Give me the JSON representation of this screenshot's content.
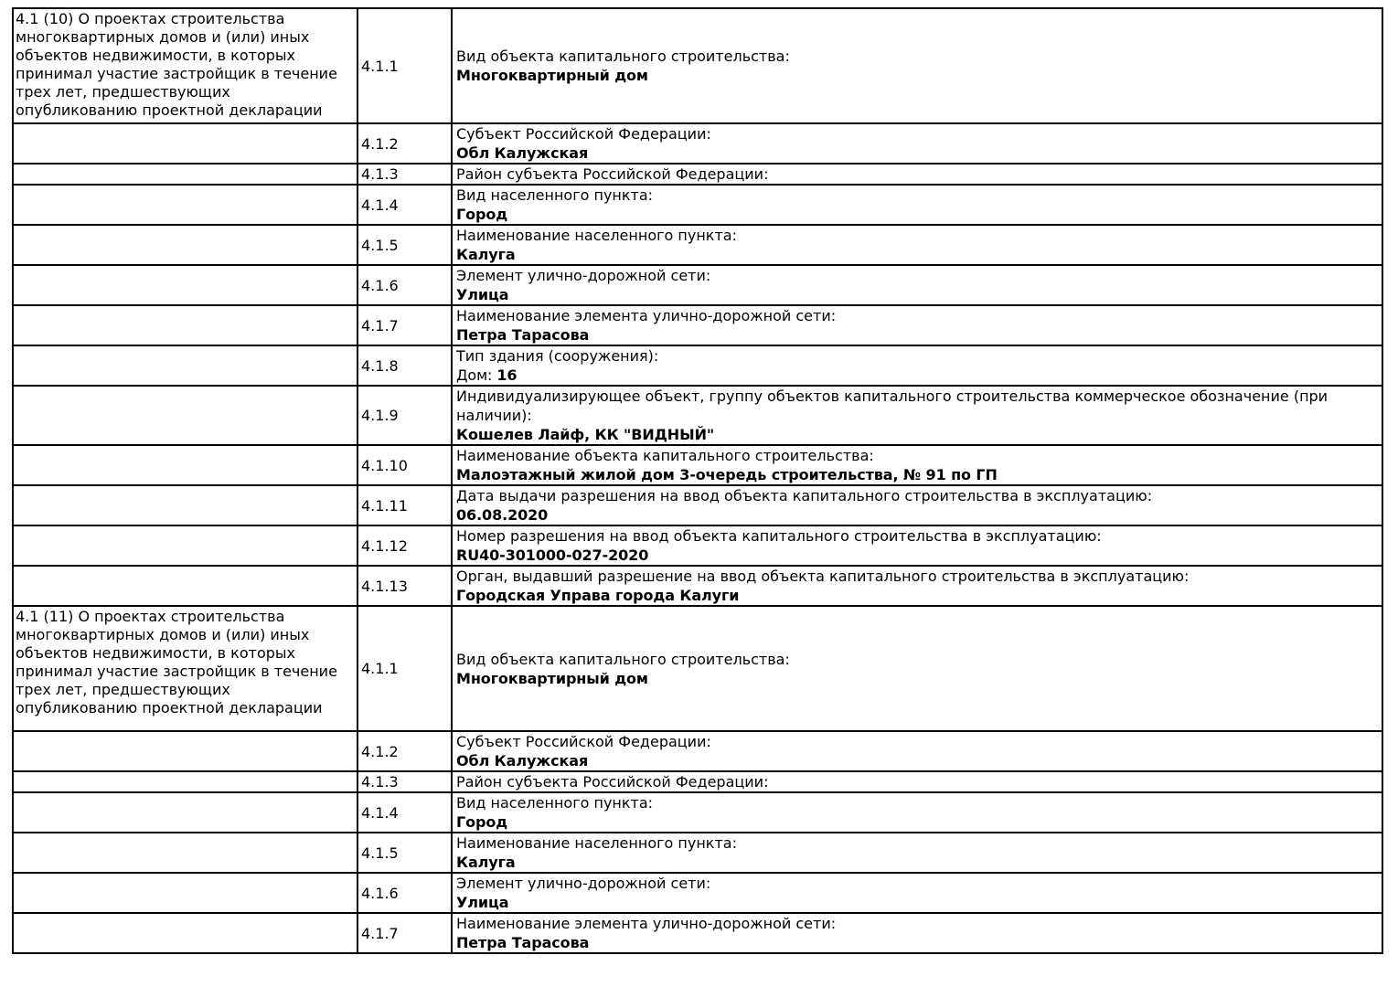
{
  "document": {
    "kind": "project-declaration-table",
    "background_color": "#ffffff",
    "text_color": "#000000",
    "border_color": "#000000"
  },
  "sections": [
    {
      "description": "4.1 (10) О проектах строительства многоквартирных домов и (или) иных объектов недвижимости, в которых принимал участие застройщик в течение трех лет, предшествующих опубликованию проектной декларации",
      "rows": [
        {
          "num": "4.1.1",
          "label": "Вид объекта капитального строительства:",
          "value": "Многоквартирный дом"
        },
        {
          "num": "4.1.2",
          "label": "Субъект Российской Федерации:",
          "value": "Обл Калужская"
        },
        {
          "num": "4.1.3",
          "label": "Район субъекта Российской Федерации:",
          "value": ""
        },
        {
          "num": "4.1.4",
          "label": "Вид населенного пункта:",
          "value": "Город"
        },
        {
          "num": "4.1.5",
          "label": "Наименование населенного пункта:",
          "value": "Калуга"
        },
        {
          "num": "4.1.6",
          "label": "Элемент улично-дорожной сети:",
          "value": "Улица"
        },
        {
          "num": "4.1.7",
          "label": "Наименование элемента улично-дорожной сети:",
          "value": "Петра Тарасова"
        },
        {
          "num": "4.1.8",
          "label": "Тип здания (сооружения):",
          "value_prefix": "Дом: ",
          "value": "16"
        },
        {
          "num": "4.1.9",
          "label": "Индивидуализирующее объект, группу объектов капитального строительства коммерческое обозначение (при наличии):",
          "value": "Кошелев Лайф, КК \"ВИДНЫЙ\""
        },
        {
          "num": "4.1.10",
          "label": "Наименование объекта капитального строительства:",
          "value": "Малоэтажный жилой дом 3-очередь строительства, № 91 по ГП"
        },
        {
          "num": "4.1.11",
          "label": "Дата выдачи разрешения на ввод объекта капитального строительства в эксплуатацию:",
          "value": "06.08.2020"
        },
        {
          "num": "4.1.12",
          "label": "Номер разрешения на ввод объекта капитального строительства в эксплуатацию:",
          "value": "RU40-301000-027-2020"
        },
        {
          "num": "4.1.13",
          "label": "Орган, выдавший разрешение на ввод объекта капитального строительства в эксплуатацию:",
          "value": "Городская Управа города Калуги"
        }
      ]
    },
    {
      "description": "4.1 (11) О проектах строительства многоквартирных домов и (или) иных объектов недвижимости, в которых принимал участие застройщик в течение трех лет, предшествующих опубликованию проектной декларации",
      "rows": [
        {
          "num": "4.1.1",
          "label": "Вид объекта капитального строительства:",
          "value": "Многоквартирный дом"
        },
        {
          "num": "4.1.2",
          "label": "Субъект Российской Федерации:",
          "value": "Обл Калужская"
        },
        {
          "num": "4.1.3",
          "label": "Район субъекта Российской Федерации:",
          "value": ""
        },
        {
          "num": "4.1.4",
          "label": "Вид населенного пункта:",
          "value": "Город"
        },
        {
          "num": "4.1.5",
          "label": "Наименование населенного пункта:",
          "value": "Калуга"
        },
        {
          "num": "4.1.6",
          "label": "Элемент улично-дорожной сети:",
          "value": "Улица"
        },
        {
          "num": "4.1.7",
          "label": "Наименование элемента улично-дорожной сети:",
          "value": "Петра Тарасова"
        }
      ]
    }
  ]
}
